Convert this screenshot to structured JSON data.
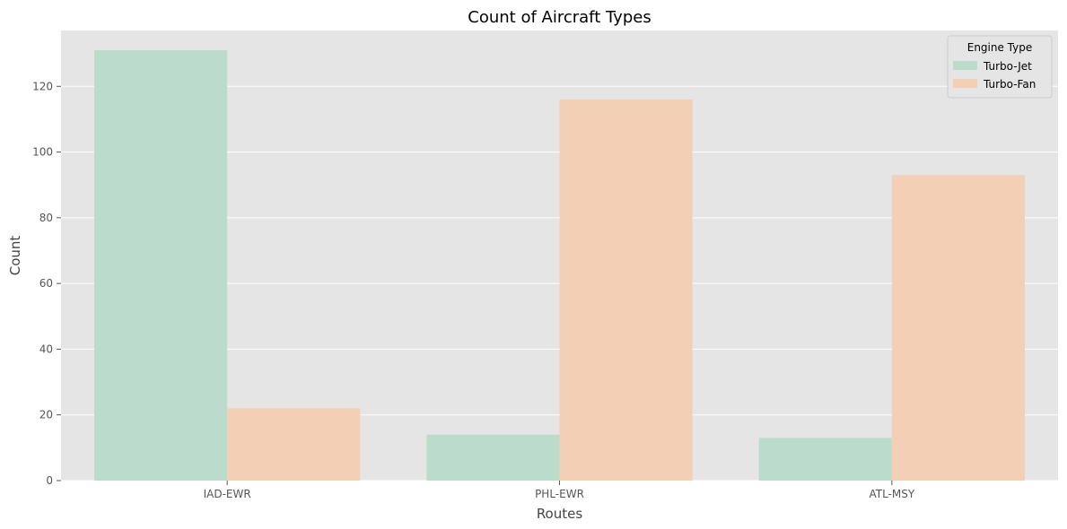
{
  "chart_data": {
    "type": "bar",
    "title": "Count of Aircraft Types",
    "xlabel": "Routes",
    "ylabel": "Count",
    "categories": [
      "IAD-EWR",
      "PHL-EWR",
      "ATL-MSY"
    ],
    "series": [
      {
        "name": "Turbo-Jet",
        "values": [
          131,
          14,
          13
        ],
        "color": "#bbdccc"
      },
      {
        "name": "Turbo-Fan",
        "values": [
          22,
          116,
          93
        ],
        "color": "#f3cfb6"
      }
    ],
    "ylim": [
      0,
      137
    ],
    "yticks": [
      0,
      20,
      40,
      60,
      80,
      100,
      120
    ],
    "grid": true,
    "legend": {
      "title": "Engine Type",
      "placement": "top-right"
    },
    "colors": {
      "background": "#e5e5e5",
      "grid": "#ffffff"
    }
  }
}
